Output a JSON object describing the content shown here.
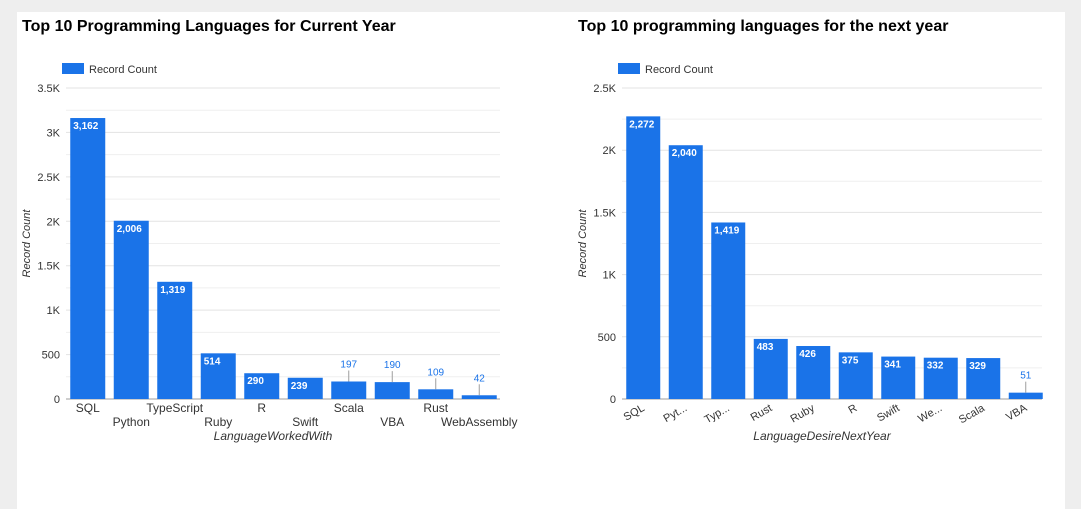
{
  "colors": {
    "bar": "#1a73e8",
    "grid": "#e3e3e3",
    "axis": "#333333",
    "outside_label": "#1a73e8"
  },
  "chart_data": [
    {
      "type": "bar",
      "title": "Top 10 Programming Languages for Current Year",
      "xlabel": "LanguageWorkedWith",
      "ylabel": "Record Count",
      "legend": {
        "label": "Record Count",
        "position": "top-left"
      },
      "ylim": [
        0,
        3500
      ],
      "y_ticks": [
        {
          "value": 0,
          "label": "0"
        },
        {
          "value": 500,
          "label": "500"
        },
        {
          "value": 1000,
          "label": "1K"
        },
        {
          "value": 1500,
          "label": "1.5K"
        },
        {
          "value": 2000,
          "label": "2K"
        },
        {
          "value": 2500,
          "label": "2.5K"
        },
        {
          "value": 3000,
          "label": "3K"
        },
        {
          "value": 3500,
          "label": "3.5K"
        }
      ],
      "grid": true,
      "categories": [
        "SQL",
        "Python",
        "TypeScript",
        "Ruby",
        "R",
        "Swift",
        "Scala",
        "VBA",
        "Rust",
        "WebAssembly"
      ],
      "values": [
        3162,
        2006,
        1319,
        514,
        290,
        239,
        197,
        190,
        109,
        42
      ],
      "value_labels": [
        "3,162",
        "2,006",
        "1,319",
        "514",
        "290",
        "239",
        "197",
        "190",
        "109",
        "42"
      ]
    },
    {
      "type": "bar",
      "title": "Top 10 programming languages for the next year",
      "xlabel": "LanguageDesireNextYear",
      "ylabel": "Record Count",
      "legend": {
        "label": "Record Count",
        "position": "top-left"
      },
      "ylim": [
        0,
        2500
      ],
      "y_ticks": [
        {
          "value": 0,
          "label": "0"
        },
        {
          "value": 500,
          "label": "500"
        },
        {
          "value": 1000,
          "label": "1K"
        },
        {
          "value": 1500,
          "label": "1.5K"
        },
        {
          "value": 2000,
          "label": "2K"
        },
        {
          "value": 2500,
          "label": "2.5K"
        }
      ],
      "grid": true,
      "categories": [
        "SQL",
        "Python",
        "TypeScript",
        "Rust",
        "Ruby",
        "R",
        "Swift",
        "WebAssembly",
        "Scala",
        "VBA"
      ],
      "tick_labels": [
        "SQL",
        "Pyt...",
        "Typ...",
        "Rust",
        "Ruby",
        "R",
        "Swift",
        "We...",
        "Scala",
        "VBA"
      ],
      "values": [
        2272,
        2040,
        1419,
        483,
        426,
        375,
        341,
        332,
        329,
        51
      ],
      "value_labels": [
        "2,272",
        "2,040",
        "1,419",
        "483",
        "426",
        "375",
        "341",
        "332",
        "329",
        "51"
      ]
    }
  ]
}
